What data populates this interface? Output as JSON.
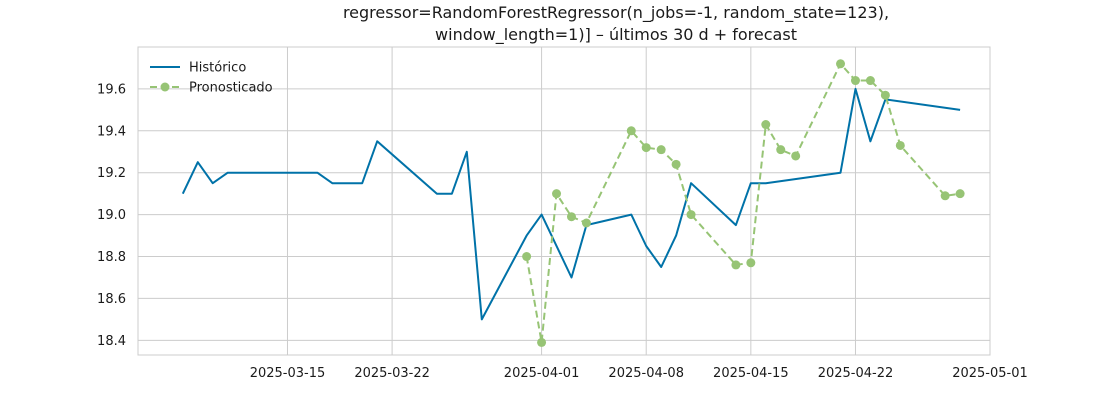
{
  "chart_data": {
    "type": "line",
    "title_lines": [
      "regressor=RandomForestRegressor(n_jobs=-1, random_state=123),",
      "window_length=1)] – últimos 30 d + forecast"
    ],
    "xlabel": "",
    "ylabel": "",
    "x_axis": {
      "type": "date",
      "range": [
        "2025-03-05",
        "2025-05-01"
      ],
      "ticks": [
        "2025-03-15",
        "2025-03-22",
        "2025-04-01",
        "2025-04-08",
        "2025-04-15",
        "2025-04-22",
        "2025-05-01"
      ]
    },
    "y_axis": {
      "range": [
        18.33,
        19.8
      ],
      "ticks": [
        18.4,
        18.6,
        18.8,
        19.0,
        19.2,
        19.4,
        19.6
      ],
      "tick_labels": [
        "18.4",
        "18.6",
        "18.8",
        "19.0",
        "19.2",
        "19.4",
        "19.6"
      ]
    },
    "grid": true,
    "legend_position": "top-left",
    "series": [
      {
        "name": "Histórico",
        "color": "#0072a8",
        "style": "solid",
        "marker": "none",
        "points": [
          [
            "2025-03-08",
            19.1
          ],
          [
            "2025-03-09",
            19.25
          ],
          [
            "2025-03-10",
            19.15
          ],
          [
            "2025-03-11",
            19.2
          ],
          [
            "2025-03-14",
            19.2
          ],
          [
            "2025-03-17",
            19.2
          ],
          [
            "2025-03-18",
            19.15
          ],
          [
            "2025-03-20",
            19.15
          ],
          [
            "2025-03-21",
            19.35
          ],
          [
            "2025-03-25",
            19.1
          ],
          [
            "2025-03-26",
            19.1
          ],
          [
            "2025-03-27",
            19.3
          ],
          [
            "2025-03-28",
            18.5
          ],
          [
            "2025-03-31",
            18.9
          ],
          [
            "2025-04-01",
            19.0
          ],
          [
            "2025-04-03",
            18.7
          ],
          [
            "2025-04-04",
            18.95
          ],
          [
            "2025-04-07",
            19.0
          ],
          [
            "2025-04-08",
            18.85
          ],
          [
            "2025-04-09",
            18.75
          ],
          [
            "2025-04-10",
            18.9
          ],
          [
            "2025-04-11",
            19.15
          ],
          [
            "2025-04-14",
            18.95
          ],
          [
            "2025-04-15",
            19.15
          ],
          [
            "2025-04-16",
            19.15
          ],
          [
            "2025-04-21",
            19.2
          ],
          [
            "2025-04-22",
            19.6
          ],
          [
            "2025-04-23",
            19.35
          ],
          [
            "2025-04-24",
            19.55
          ],
          [
            "2025-04-29",
            19.5
          ]
        ]
      },
      {
        "name": "Pronosticado",
        "color": "#97c475",
        "style": "dashed",
        "marker": "circle",
        "points": [
          [
            "2025-03-31",
            18.8
          ],
          [
            "2025-04-01",
            18.39
          ],
          [
            "2025-04-02",
            19.1
          ],
          [
            "2025-04-03",
            18.99
          ],
          [
            "2025-04-04",
            18.96
          ],
          [
            "2025-04-07",
            19.4
          ],
          [
            "2025-04-08",
            19.32
          ],
          [
            "2025-04-09",
            19.31
          ],
          [
            "2025-04-10",
            19.24
          ],
          [
            "2025-04-11",
            19.0
          ],
          [
            "2025-04-14",
            18.76
          ],
          [
            "2025-04-15",
            18.77
          ],
          [
            "2025-04-16",
            19.43
          ],
          [
            "2025-04-17",
            19.31
          ],
          [
            "2025-04-18",
            19.28
          ],
          [
            "2025-04-21",
            19.72
          ],
          [
            "2025-04-22",
            19.64
          ],
          [
            "2025-04-23",
            19.64
          ],
          [
            "2025-04-24",
            19.57
          ],
          [
            "2025-04-25",
            19.33
          ],
          [
            "2025-04-28",
            19.09
          ],
          [
            "2025-04-29",
            19.1
          ]
        ]
      }
    ]
  }
}
